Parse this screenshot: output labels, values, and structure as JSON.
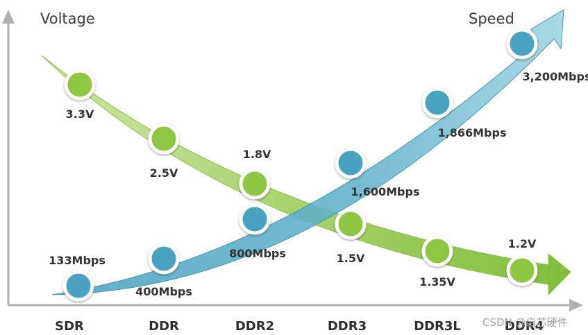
{
  "chart_data": {
    "type": "line",
    "y_axis_title": "Voltage",
    "speed_title": "Speed",
    "categories": [
      "SDR",
      "DDR",
      "DDR2",
      "DDR3",
      "DDR3L",
      "DDR4"
    ],
    "series": [
      {
        "name": "Voltage",
        "color": "#8dc63f",
        "points": [
          {
            "category": "SDR",
            "value": 3.3,
            "label": "3.3V"
          },
          {
            "category": "DDR",
            "value": 2.5,
            "label": "2.5V"
          },
          {
            "category": "DDR2",
            "value": 1.8,
            "label": "1.8V"
          },
          {
            "category": "DDR3",
            "value": 1.5,
            "label": "1.5V"
          },
          {
            "category": "DDR3L",
            "value": 1.35,
            "label": "1.35V"
          },
          {
            "category": "DDR4",
            "value": 1.2,
            "label": "1.2V"
          }
        ]
      },
      {
        "name": "Speed",
        "color": "#4aa3c0",
        "points": [
          {
            "category": "SDR",
            "value": 133,
            "label": "133Mbps"
          },
          {
            "category": "DDR",
            "value": 400,
            "label": "400Mbps"
          },
          {
            "category": "DDR2",
            "value": 800,
            "label": "800Mbps"
          },
          {
            "category": "DDR3",
            "value": 1600,
            "label": "1,600Mbps"
          },
          {
            "category": "DDR3L",
            "value": 1866,
            "label": "1,866Mbps"
          },
          {
            "category": "DDR4",
            "value": 3200,
            "label": "3,200Mbps"
          }
        ]
      }
    ],
    "grid": false,
    "legend": "none"
  },
  "watermark": "CSDN @启芯硬件"
}
